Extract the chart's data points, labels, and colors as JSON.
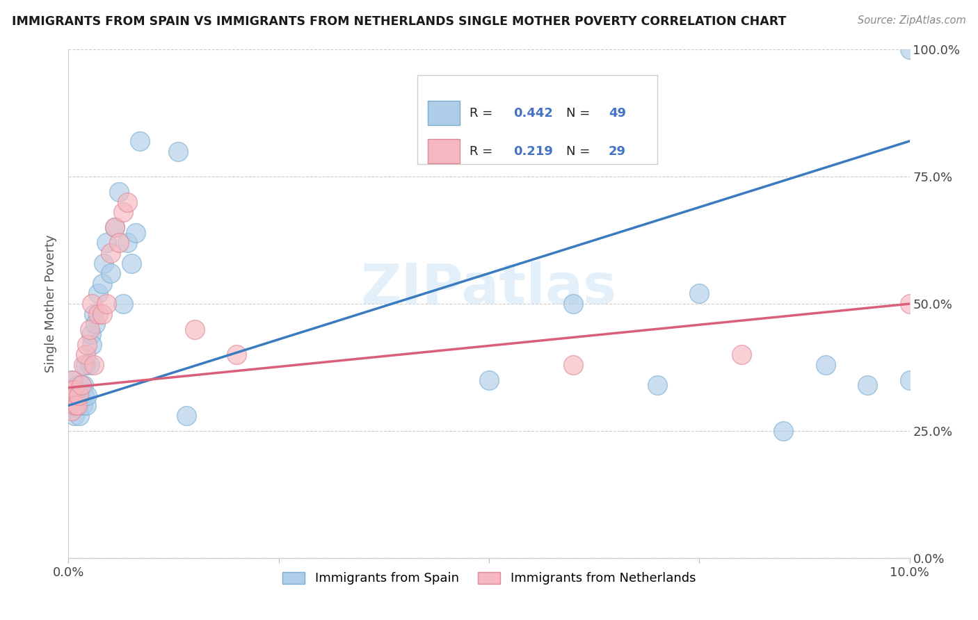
{
  "title": "IMMIGRANTS FROM SPAIN VS IMMIGRANTS FROM NETHERLANDS SINGLE MOTHER POVERTY CORRELATION CHART",
  "source": "Source: ZipAtlas.com",
  "ylabel": "Single Mother Poverty",
  "watermark": "ZIPatlas",
  "legend_label1": "Immigrants from Spain",
  "legend_label2": "Immigrants from Netherlands",
  "blue_scatter_color": "#aecde8",
  "blue_scatter_edge": "#7aaed0",
  "pink_scatter_color": "#f5b8c0",
  "pink_scatter_edge": "#e08898",
  "blue_line_color": "#3a7bbf",
  "pink_line_color": "#d95f7a",
  "spain_x": [
    0.001,
    0.002,
    0.003,
    0.004,
    0.005,
    0.006,
    0.007,
    0.008,
    0.009,
    0.01,
    0.011,
    0.012,
    0.013,
    0.014,
    0.015,
    0.017,
    0.018,
    0.019,
    0.02,
    0.021,
    0.022,
    0.025,
    0.027,
    0.028,
    0.03,
    0.032,
    0.035,
    0.04,
    0.042,
    0.045,
    0.05,
    0.055,
    0.06,
    0.065,
    0.07,
    0.075,
    0.08,
    0.085,
    0.13,
    0.14,
    0.5,
    0.6,
    0.7,
    0.75,
    0.85,
    0.9,
    0.95,
    1.0,
    1.0
  ],
  "spain_y": [
    0.33,
    0.31,
    0.3,
    0.32,
    0.35,
    0.3,
    0.28,
    0.3,
    0.31,
    0.32,
    0.34,
    0.3,
    0.28,
    0.32,
    0.34,
    0.3,
    0.34,
    0.32,
    0.38,
    0.3,
    0.32,
    0.38,
    0.44,
    0.42,
    0.48,
    0.46,
    0.52,
    0.54,
    0.58,
    0.62,
    0.56,
    0.65,
    0.72,
    0.5,
    0.62,
    0.58,
    0.64,
    0.82,
    0.8,
    0.28,
    0.35,
    0.5,
    0.34,
    0.52,
    0.25,
    0.38,
    0.34,
    0.35,
    1.0
  ],
  "neth_x": [
    0.001,
    0.002,
    0.003,
    0.004,
    0.005,
    0.006,
    0.008,
    0.01,
    0.012,
    0.015,
    0.018,
    0.02,
    0.022,
    0.025,
    0.028,
    0.03,
    0.035,
    0.04,
    0.045,
    0.05,
    0.055,
    0.06,
    0.065,
    0.07,
    0.15,
    0.2,
    0.6,
    0.8,
    1.0
  ],
  "neth_y": [
    0.33,
    0.31,
    0.32,
    0.29,
    0.35,
    0.33,
    0.3,
    0.3,
    0.32,
    0.34,
    0.38,
    0.4,
    0.42,
    0.45,
    0.5,
    0.38,
    0.48,
    0.48,
    0.5,
    0.6,
    0.65,
    0.62,
    0.68,
    0.7,
    0.45,
    0.4,
    0.38,
    0.4,
    0.5
  ],
  "xlim": [
    0.0,
    1.0
  ],
  "ylim": [
    0.0,
    1.0
  ],
  "blue_trendline_start_y": 0.3,
  "blue_trendline_end_y": 0.82,
  "pink_trendline_start_y": 0.335,
  "pink_trendline_end_y": 0.5
}
